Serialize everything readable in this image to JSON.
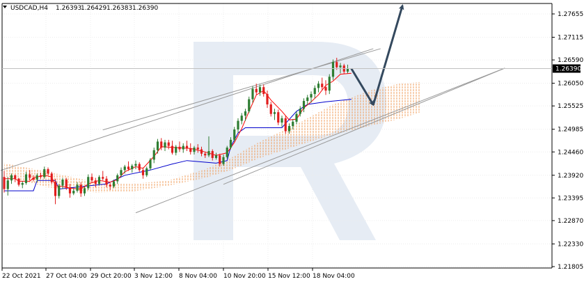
{
  "chart_data": {
    "type": "candlestick",
    "symbol_header": "USDCAD,H4",
    "ohlc": {
      "open": "1.26393",
      "high": "1.26429",
      "low": "1.26383",
      "close": "1.26390"
    },
    "current_price": "1.26390",
    "y_ticks": [
      "1.27655",
      "1.27115",
      "1.26590",
      "1.26050",
      "1.25525",
      "1.24985",
      "1.24460",
      "1.23920",
      "1.23395",
      "1.22870",
      "1.22330",
      "1.21805"
    ],
    "ylim": [
      1.21805,
      1.27925
    ],
    "x_ticks": [
      "22 Oct 2021",
      "27 Oct 04:00",
      "29 Oct 20:00",
      "3 Nov 12:00",
      "8 Nov 04:00",
      "10 Nov 20:00",
      "15 Nov 12:00",
      "18 Nov 04:00"
    ],
    "grid": true,
    "indicators": [
      "Ichimoku Kinko Hyo",
      "Tenkan-sen",
      "Kijun-sen",
      "Senkou Span"
    ],
    "forecast": "decline toward cloud support, then rise",
    "colors": {
      "bull_candle": "#2e7d32",
      "bear_candle": "#e11d1d",
      "tenkan": "#ff0000",
      "kijun": "#0000cc",
      "cloud": "#f0a060",
      "channel": "#999999",
      "forecast_arrow": "#34495e",
      "price_tag": "#000000",
      "watermark": "#dde6f0"
    }
  }
}
